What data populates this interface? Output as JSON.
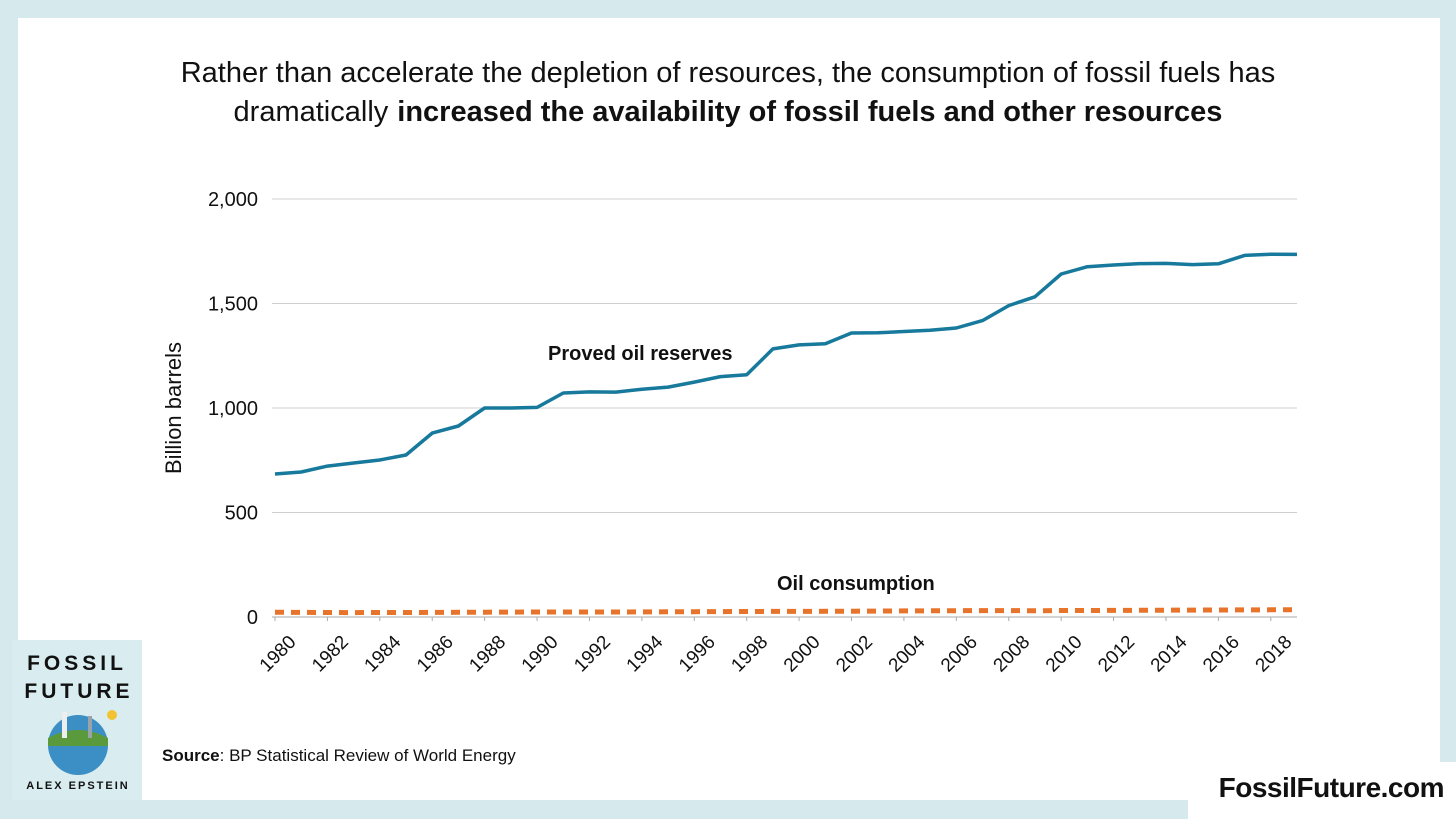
{
  "chart_data": {
    "type": "line",
    "title_part1": "Rather than accelerate the depletion of resources, the consumption of fossil fuels has",
    "title_part2": "dramatically",
    "title_bold": "increased the availability of fossil fuels and other resources",
    "y_label": "Billion barrels",
    "x": [
      1980,
      1981,
      1982,
      1983,
      1984,
      1985,
      1986,
      1987,
      1988,
      1989,
      1990,
      1991,
      1992,
      1993,
      1994,
      1995,
      1996,
      1997,
      1998,
      1999,
      2000,
      2001,
      2002,
      2003,
      2004,
      2005,
      2006,
      2007,
      2008,
      2009,
      2010,
      2011,
      2012,
      2013,
      2014,
      2015,
      2016,
      2017,
      2018,
      2019
    ],
    "xlim": [
      1980,
      2019
    ],
    "xticks": [
      1980,
      1982,
      1984,
      1986,
      1988,
      1990,
      1992,
      1994,
      1996,
      1998,
      2000,
      2002,
      2004,
      2006,
      2008,
      2010,
      2012,
      2014,
      2016,
      2018
    ],
    "ylim": [
      0,
      2000
    ],
    "yticks": [
      0,
      500,
      {
        "value": 1000,
        "label": "1,000"
      },
      {
        "value": 1500,
        "label": "1,500"
      },
      {
        "value": 2000,
        "label": "2,000"
      }
    ],
    "grid": true,
    "series": [
      {
        "name": "Proved oil reserves",
        "color": "#17799c",
        "dashed": false,
        "values": [
          684,
          694,
          722,
          737,
          751,
          775,
          880,
          914,
          1000,
          1000,
          1003,
          1072,
          1077,
          1076,
          1090,
          1100,
          1124,
          1150,
          1159,
          1283,
          1302,
          1307,
          1359,
          1360,
          1366,
          1372,
          1383,
          1418,
          1490,
          1532,
          1641,
          1676,
          1684,
          1691,
          1692,
          1686,
          1690,
          1730,
          1736,
          1735
        ]
      },
      {
        "name": "Oil consumption",
        "color": "#e8732a",
        "dashed": true,
        "values": [
          22.9,
          22.1,
          21.4,
          21.2,
          21.6,
          21.6,
          22.2,
          22.6,
          23.2,
          23.6,
          23.8,
          23.8,
          24.0,
          24.1,
          24.5,
          24.9,
          25.4,
          26.0,
          26.1,
          26.7,
          27.0,
          27.3,
          27.6,
          28.2,
          29.4,
          29.8,
          30.2,
          30.6,
          30.4,
          29.9,
          30.9,
          31.3,
          31.7,
          32.2,
          32.4,
          33.0,
          33.6,
          34.2,
          34.6,
          34.8
        ]
      }
    ],
    "source_label": "Source",
    "source_text": ": BP Statistical Review of World Energy"
  },
  "branding": {
    "cover_line1": "FOSSIL",
    "cover_line2": "FUTURE",
    "cover_author": "ALEX EPSTEIN",
    "website": "FossilFuture.com"
  }
}
